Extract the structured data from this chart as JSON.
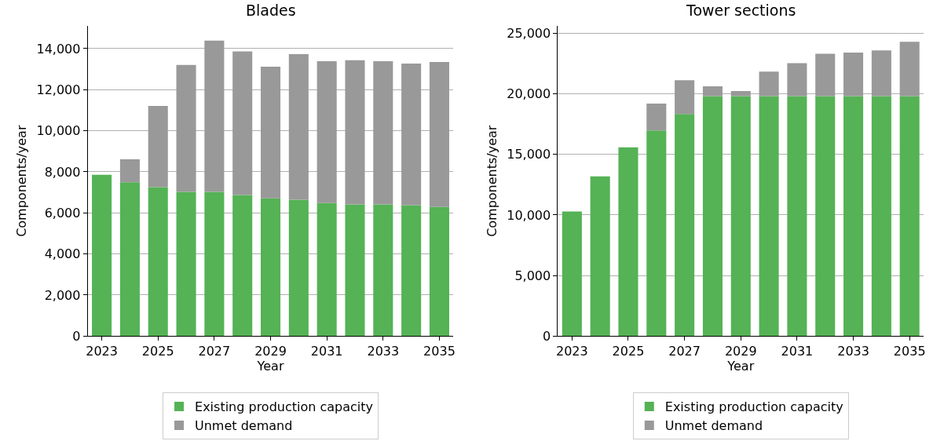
{
  "chart_data": [
    {
      "type": "bar",
      "title": "Blades",
      "xlabel": "Year",
      "ylabel": "Components/year",
      "stacked": true,
      "x": [
        2023,
        2024,
        2025,
        2026,
        2027,
        2028,
        2029,
        2030,
        2031,
        2032,
        2033,
        2034,
        2035
      ],
      "series": [
        {
          "name": "Existing production capacity",
          "color": "#55b255",
          "values": [
            7850,
            7490,
            7250,
            7020,
            7020,
            6870,
            6710,
            6640,
            6480,
            6410,
            6410,
            6370,
            6290
          ]
        },
        {
          "name": "Unmet demand",
          "color": "#999999",
          "values": [
            0,
            1120,
            3960,
            6180,
            7370,
            6990,
            6410,
            7090,
            6910,
            7020,
            6980,
            6900,
            7060
          ]
        }
      ],
      "xlim": [
        2022.5,
        2035.5
      ],
      "xticks": [
        2023,
        2025,
        2027,
        2029,
        2031,
        2033,
        2035
      ],
      "ylim": [
        0,
        15100
      ],
      "yticks": [
        {
          "value": 0,
          "label": "0"
        },
        {
          "value": 2000,
          "label": "2,000"
        },
        {
          "value": 4000,
          "label": "4,000"
        },
        {
          "value": 6000,
          "label": "6,000"
        },
        {
          "value": 8000,
          "label": "8,000"
        },
        {
          "value": 10000,
          "label": "10,000"
        },
        {
          "value": 12000,
          "label": "12,000"
        },
        {
          "value": 14000,
          "label": "14,000"
        }
      ],
      "grid": "y",
      "legend": "bottom"
    },
    {
      "type": "bar",
      "title": "Tower sections",
      "xlabel": "Year",
      "ylabel": "Components/year",
      "stacked": true,
      "x": [
        2023,
        2024,
        2025,
        2026,
        2027,
        2028,
        2029,
        2030,
        2031,
        2032,
        2033,
        2034,
        2035
      ],
      "series": [
        {
          "name": "Existing production capacity",
          "color": "#55b255",
          "values": [
            10280,
            13180,
            15590,
            16970,
            18340,
            19810,
            19810,
            19810,
            19810,
            19810,
            19810,
            19810,
            19810
          ]
        },
        {
          "name": "Unmet demand",
          "color": "#999999",
          "values": [
            0,
            0,
            0,
            2230,
            2780,
            810,
            430,
            2020,
            2730,
            3500,
            3590,
            3780,
            4490
          ]
        }
      ],
      "xlim": [
        2022.5,
        2035.5
      ],
      "xticks": [
        2023,
        2025,
        2027,
        2029,
        2031,
        2033,
        2035
      ],
      "ylim": [
        0,
        25600
      ],
      "yticks": [
        {
          "value": 0,
          "label": "0"
        },
        {
          "value": 5000,
          "label": "5,000"
        },
        {
          "value": 10000,
          "label": "10,000"
        },
        {
          "value": 15000,
          "label": "15,000"
        },
        {
          "value": 20000,
          "label": "20,000"
        },
        {
          "value": 25000,
          "label": "25,000"
        }
      ],
      "grid": "y",
      "legend": "bottom"
    }
  ]
}
